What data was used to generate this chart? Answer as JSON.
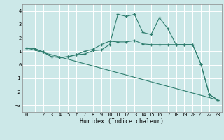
{
  "xlabel": "Humidex (Indice chaleur)",
  "background_color": "#cce8e8",
  "grid_color": "#ffffff",
  "line_color": "#2e7d6e",
  "xlim": [
    -0.5,
    23.5
  ],
  "ylim": [
    -3.5,
    4.5
  ],
  "yticks": [
    -3,
    -2,
    -1,
    0,
    1,
    2,
    3,
    4
  ],
  "xticks": [
    0,
    1,
    2,
    3,
    4,
    5,
    6,
    7,
    8,
    9,
    10,
    11,
    12,
    13,
    14,
    15,
    16,
    17,
    18,
    19,
    20,
    21,
    22,
    23
  ],
  "series": [
    {
      "x": [
        0,
        1,
        2,
        3,
        4,
        5,
        6,
        7,
        8,
        9,
        10,
        11,
        12,
        13,
        14,
        15,
        16,
        17,
        18,
        19,
        20,
        21,
        22,
        23
      ],
      "y": [
        1.25,
        1.2,
        0.95,
        0.6,
        0.55,
        0.6,
        0.75,
        0.8,
        1.05,
        1.1,
        1.5,
        3.75,
        3.6,
        3.75,
        2.4,
        2.25,
        3.5,
        2.7,
        1.5,
        1.5,
        1.5,
        0.05,
        -2.2,
        -2.6
      ],
      "marker": true
    },
    {
      "x": [
        0,
        1,
        2,
        3,
        4,
        5,
        6,
        7,
        8,
        9,
        10,
        11,
        12,
        13,
        14,
        15,
        16,
        17,
        18,
        19,
        20,
        21,
        22,
        23
      ],
      "y": [
        1.25,
        1.2,
        0.95,
        0.6,
        0.55,
        0.6,
        0.75,
        1.0,
        1.15,
        1.5,
        1.75,
        1.7,
        1.7,
        1.8,
        1.55,
        1.5,
        1.5,
        1.5,
        1.5,
        1.5,
        1.5,
        0.05,
        -2.2,
        -2.6
      ],
      "marker": true
    },
    {
      "x": [
        0,
        23
      ],
      "y": [
        1.25,
        -2.6
      ],
      "marker": false
    }
  ]
}
